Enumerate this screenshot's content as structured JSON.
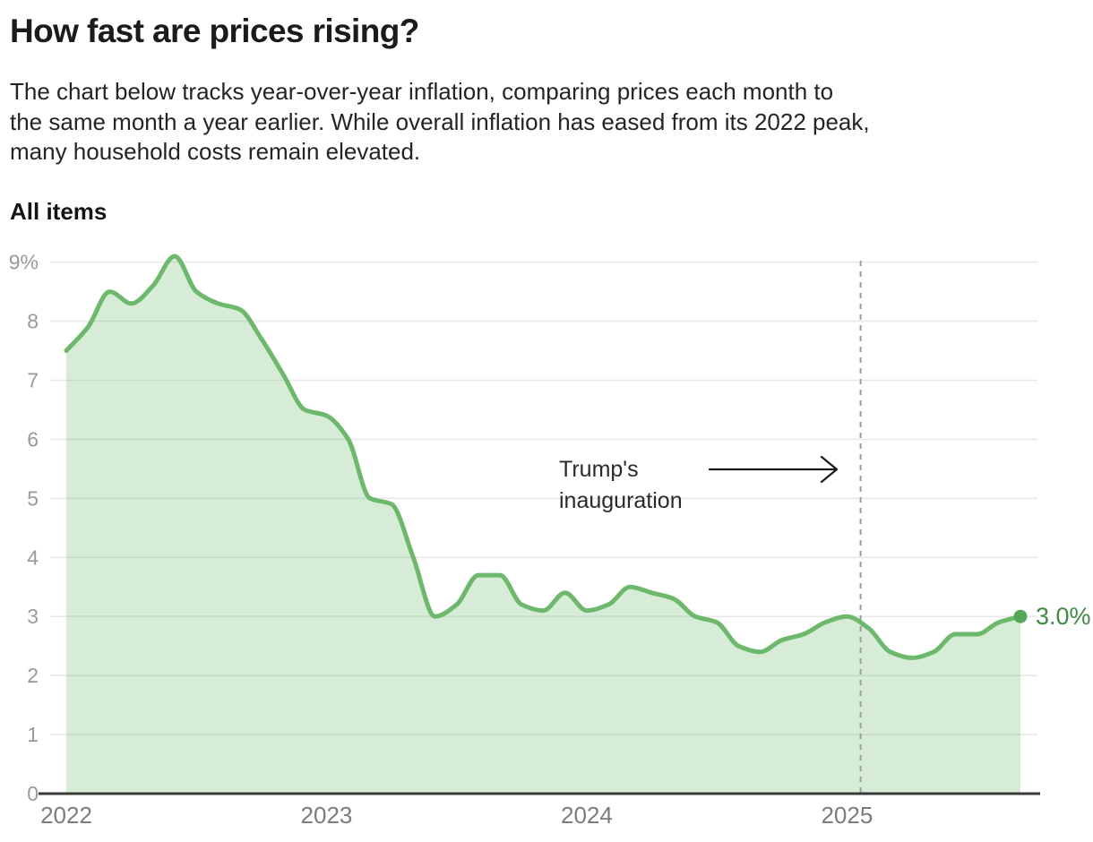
{
  "header": {
    "title": "How fast are prices rising?",
    "subtitle_lines": [
      "The chart below tracks year-over-year inflation, comparing prices each month to",
      "the same month a year earlier. While overall inflation has eased from its 2022 peak,",
      "many household costs remain elevated."
    ]
  },
  "chart_data": {
    "type": "area",
    "title": "All items",
    "y_axis": {
      "tick_labels": [
        "0",
        "1",
        "2",
        "3",
        "4",
        "5",
        "6",
        "7",
        "8",
        "9%"
      ],
      "tick_values": [
        0,
        1,
        2,
        3,
        4,
        5,
        6,
        7,
        8,
        9
      ],
      "range": [
        0,
        9.5
      ],
      "grid": true
    },
    "x_axis": {
      "tick_labels": [
        "2022",
        "2023",
        "2024",
        "2025"
      ],
      "tick_month_indices": [
        0,
        12,
        24,
        36
      ]
    },
    "months": [
      "2022-01",
      "2022-02",
      "2022-03",
      "2022-04",
      "2022-05",
      "2022-06",
      "2022-07",
      "2022-08",
      "2022-09",
      "2022-10",
      "2022-11",
      "2022-12",
      "2023-01",
      "2023-02",
      "2023-03",
      "2023-04",
      "2023-05",
      "2023-06",
      "2023-07",
      "2023-08",
      "2023-09",
      "2023-10",
      "2023-11",
      "2023-12",
      "2024-01",
      "2024-02",
      "2024-03",
      "2024-04",
      "2024-05",
      "2024-06",
      "2024-07",
      "2024-08",
      "2024-09",
      "2024-10",
      "2024-11",
      "2024-12",
      "2025-01",
      "2025-02",
      "2025-03",
      "2025-04",
      "2025-05",
      "2025-06",
      "2025-07",
      "2025-08",
      "2025-09"
    ],
    "values": [
      7.5,
      7.9,
      8.5,
      8.3,
      8.6,
      9.1,
      8.5,
      8.3,
      8.2,
      7.7,
      7.1,
      6.5,
      6.4,
      6.0,
      5.0,
      4.9,
      4.0,
      3.0,
      3.2,
      3.7,
      3.7,
      3.2,
      3.1,
      3.4,
      3.1,
      3.2,
      3.5,
      3.4,
      3.3,
      3.0,
      2.9,
      2.5,
      2.4,
      2.6,
      2.7,
      2.9,
      3.0,
      2.8,
      2.4,
      2.3,
      2.4,
      2.7,
      2.7,
      2.9,
      3.0
    ],
    "end_label": "3.0%",
    "annotation": {
      "line1": "Trump's",
      "line2": "inauguration",
      "event_month_index": 36.63
    },
    "colors": {
      "line": "#6db96c",
      "fill": "#6db96c",
      "fill_opacity": 0.28,
      "dot": "#57a759",
      "end_label": "#3e8b42",
      "grid": "#e8e8e8",
      "axis": "#3a3a3a",
      "dashed_line": "#9c9c9c",
      "y_tick_text": "#9a9a9a",
      "x_tick_text": "#7c7c7c",
      "annotation_text": "#2a2a2a",
      "arrow": "#1a1a1a"
    }
  }
}
